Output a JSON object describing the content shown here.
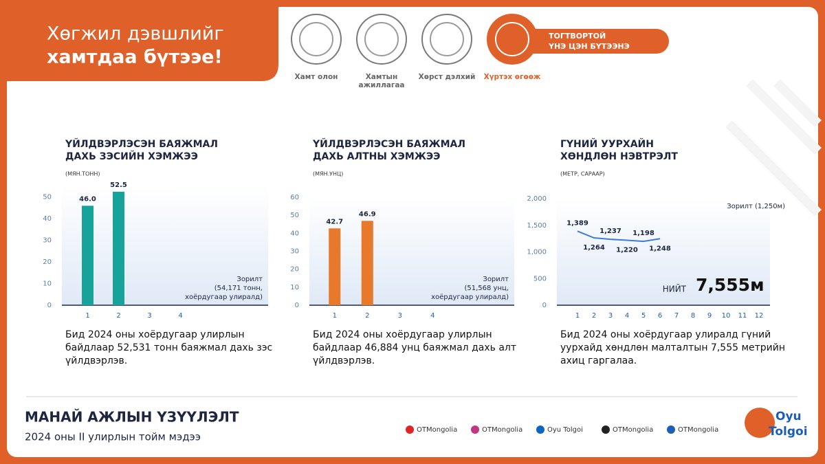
{
  "header": {
    "title": [
      "Хөгжил дэвшлийг",
      "хамтдаа бүтээе!"
    ],
    "values": [
      {
        "label": [
          "Хамт олон"
        ]
      },
      {
        "label": [
          "Хамтын",
          "ажиллагаа"
        ]
      },
      {
        "label": [
          "Хөрст дэлхий"
        ]
      },
      {
        "label": [
          "Хүртэх өгөөж"
        ]
      }
    ],
    "banner": [
      "ТОГТВОРТОЙ",
      "ҮНЭ ЦЭН БҮТЭЭНЭ"
    ]
  },
  "chart_data": [
    {
      "type": "bar",
      "title": [
        "ҮЙЛДВЭРЛЭСЭН БАЯЖМАЛ",
        "ДАХЬ ЗЭСИЙН ХЭМЖЭЭ"
      ],
      "subtitle": "(МЯН.ТОНН)",
      "categories": [
        1,
        2,
        3,
        4
      ],
      "values": [
        46.0,
        52.5,
        null,
        null
      ],
      "value_labels": [
        "46.0",
        "52.5",
        null,
        null
      ],
      "color": "#17a39a",
      "ylim": [
        0,
        55
      ],
      "yticks": [
        0,
        10,
        20,
        30,
        40,
        50
      ],
      "annotation": [
        "Зорилт",
        "(54,171 тонн,",
        "хоёрдугаар улиралд)"
      ],
      "description": [
        "Бид 2024 оны хоёрдугаар улирлын",
        "байдлаар 52,531 тонн баяжмал дахь зэс",
        "үйлдвэрлэв."
      ]
    },
    {
      "type": "bar",
      "title": [
        "ҮЙЛДВЭРЛЭСЭН БАЯЖМАЛ",
        "ДАХЬ АЛТНЫ ХЭМЖЭЭ"
      ],
      "subtitle": "(МЯН.УНЦ)",
      "categories": [
        1,
        2,
        3,
        4
      ],
      "values": [
        42.7,
        46.9,
        null,
        null
      ],
      "color": "#e8782a",
      "ylim": [
        0,
        60
      ],
      "yticks": [
        0,
        10,
        20,
        30,
        40,
        50,
        60
      ],
      "annotation": [
        "Зорилт",
        "(51,568 унц,",
        "хоёрдугаар улиралд)"
      ],
      "description": [
        "Бид 2024 оны хоёрдугаар улирлын",
        "байдлаар 46,884 унц баяжмал дахь алт",
        "үйлдвэрлэв."
      ]
    },
    {
      "type": "line",
      "title": [
        "ГҮНИЙ УУРХАЙН",
        "ХӨНДЛӨН НЭВТРЭЛТ"
      ],
      "subtitle": "(МЕТР, САРААР)",
      "categories": [
        1,
        2,
        3,
        4,
        5,
        6,
        7,
        8,
        9,
        10,
        11,
        12
      ],
      "values": [
        1389,
        1264,
        1237,
        1220,
        1198,
        1248,
        null,
        null,
        null,
        null,
        null,
        null
      ],
      "value_labels": [
        "1,389",
        "1,264",
        "1,237",
        "1,220",
        "1,198",
        "1,248",
        null,
        null,
        null,
        null,
        null,
        null
      ],
      "color": "#3b7dd8",
      "ylim": [
        0,
        2000
      ],
      "yticks": [
        0,
        500,
        {
          "value": 1000,
          "label": "1,000"
        },
        {
          "value": 1500,
          "label": "1,500"
        },
        {
          "value": 2000,
          "label": "2,000"
        }
      ],
      "annotation": [
        "Зорилт (1,250м)"
      ],
      "total_label": "НИЙТ",
      "total": "7,555м",
      "description": [
        "Бид 2024 оны хоёрдугаар улиралд гүний",
        "уурхайд хөндлөн малталтын 7,555 метрийн",
        "ахиц гаргалаа."
      ]
    }
  ],
  "footer": {
    "title": "МАНАЙ АЖЛЫН ҮЗҮҮЛЭЛТ",
    "subtitle": "2024 оны II улирлын тойм мэдээ",
    "socials": [
      "OTMongolia",
      "OTMongolia",
      "Oyu Tolgoi",
      "OTMongolia",
      "OTMongolia"
    ],
    "logo": [
      "Oyu",
      "Tolgoi"
    ]
  }
}
